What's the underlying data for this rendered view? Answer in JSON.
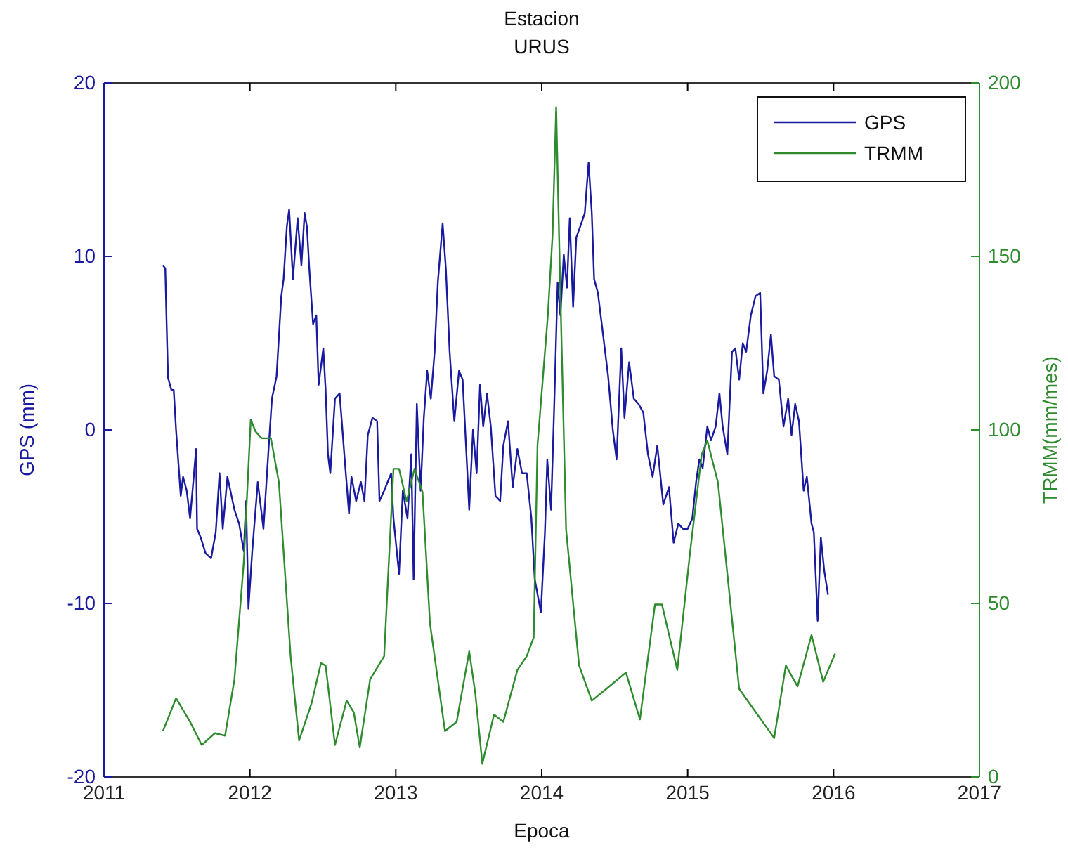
{
  "chart_data": {
    "type": "line",
    "title": "Estacion",
    "subtitle": "URUS",
    "xlabel": "Epoca",
    "ylabel": "GPS (mm)",
    "y2label": "TRMM(mm/mes)",
    "xlim": [
      2011,
      2017
    ],
    "xticks": [
      2011,
      2012,
      2013,
      2014,
      2015,
      2016,
      2017
    ],
    "ylim": [
      -20,
      20
    ],
    "yticks": [
      -20,
      -10,
      0,
      10,
      20
    ],
    "y2lim": [
      0,
      200
    ],
    "y2ticks": [
      0,
      50,
      100,
      150,
      200
    ],
    "grid": false,
    "legend": "top right",
    "line_style": "solid",
    "marker": "none",
    "series": [
      {
        "name": "GPS",
        "color": "#1a1aa0",
        "x": [
          2011.404,
          2011.42,
          2011.429,
          2011.439,
          2011.462,
          2011.478,
          2011.494,
          2011.526,
          2011.542,
          2011.567,
          2011.59,
          2011.612,
          2011.631,
          2011.638,
          2011.663,
          2011.696,
          2011.734,
          2011.766,
          2011.792,
          2011.814,
          2011.846,
          2011.894,
          2011.926,
          2011.958,
          2011.974,
          2011.99,
          2012.016,
          2012.054,
          2012.093,
          2012.128,
          2012.151,
          2012.183,
          2012.215,
          2012.231,
          2012.253,
          2012.269,
          2012.295,
          2012.327,
          2012.353,
          2012.375,
          2012.391,
          2012.407,
          2012.433,
          2012.455,
          2012.471,
          2012.503,
          2012.519,
          2012.535,
          2012.551,
          2012.583,
          2012.615,
          2012.647,
          2012.679,
          2012.696,
          2012.728,
          2012.76,
          2012.785,
          2012.808,
          2012.84,
          2012.872,
          2012.888,
          2012.92,
          2012.968,
          2012.984,
          2013.022,
          2013.048,
          2013.08,
          2013.106,
          2013.122,
          2013.144,
          2013.17,
          2013.192,
          2013.215,
          2013.24,
          2013.266,
          2013.288,
          2013.321,
          2013.343,
          2013.369,
          2013.401,
          2013.433,
          2013.458,
          2013.481,
          2013.503,
          2013.529,
          2013.554,
          2013.577,
          2013.599,
          2013.625,
          2013.651,
          2013.683,
          2013.715,
          2013.737,
          2013.769,
          2013.801,
          2013.833,
          2013.865,
          2013.897,
          2013.929,
          2013.952,
          2013.994,
          2014.022,
          2014.038,
          2014.064,
          2014.087,
          2014.109,
          2014.128,
          2014.151,
          2014.173,
          2014.192,
          2014.215,
          2014.237,
          2014.263,
          2014.295,
          2014.321,
          2014.343,
          2014.359,
          2014.385,
          2014.423,
          2014.455,
          2014.487,
          2014.513,
          2014.545,
          2014.567,
          2014.599,
          2014.631,
          2014.663,
          2014.696,
          2014.728,
          2014.76,
          2014.792,
          2014.833,
          2014.872,
          2014.904,
          2014.936,
          2014.968,
          2015.0,
          2015.032,
          2015.058,
          2015.08,
          2015.103,
          2015.135,
          2015.16,
          2015.192,
          2015.218,
          2015.24,
          2015.272,
          2015.304,
          2015.327,
          2015.353,
          2015.378,
          2015.401,
          2015.433,
          2015.465,
          2015.497,
          2015.519,
          2015.545,
          2015.571,
          2015.593,
          2015.625,
          2015.657,
          2015.689,
          2015.712,
          2015.737,
          2015.763,
          2015.795,
          2015.817,
          2015.849,
          2015.865,
          2015.891,
          2015.913,
          2015.936,
          2015.962
        ],
        "values": [
          9.5,
          9.3,
          6.2,
          3.0,
          2.3,
          2.3,
          0,
          -3.8,
          -2.7,
          -3.5,
          -5.1,
          -3.0,
          -1.1,
          -5.7,
          -6.2,
          -7.1,
          -7.4,
          -5.9,
          -2.5,
          -5.7,
          -2.7,
          -4.6,
          -5.4,
          -7.0,
          -4.1,
          -10.3,
          -7.0,
          -3.0,
          -5.7,
          -1.1,
          1.8,
          3.1,
          7.7,
          8.7,
          11.7,
          12.7,
          8.7,
          12.2,
          9.5,
          12.5,
          11.7,
          9.3,
          6.1,
          6.6,
          2.6,
          4.7,
          2.3,
          -1.4,
          -2.5,
          1.8,
          2.1,
          -1.4,
          -4.8,
          -2.7,
          -4.1,
          -3.0,
          -4.1,
          -0.3,
          0.7,
          0.5,
          -4.1,
          -3.5,
          -2.5,
          -5.1,
          -8.3,
          -3.5,
          -5.1,
          -1.4,
          -8.6,
          1.5,
          -3.5,
          0.7,
          3.4,
          1.8,
          4.5,
          8.5,
          11.9,
          9.3,
          4.5,
          0.5,
          3.4,
          2.9,
          -0.9,
          -4.6,
          0,
          -2.5,
          2.6,
          0.2,
          2.1,
          0.2,
          -3.8,
          -4.1,
          -0.9,
          0.5,
          -3.3,
          -1.1,
          -2.5,
          -2.5,
          -5.1,
          -8.6,
          -10.5,
          -5.9,
          -1.7,
          -4.6,
          1.8,
          8.5,
          6.6,
          10.1,
          8.2,
          12.2,
          7.1,
          11.1,
          11.7,
          12.5,
          15.4,
          12.5,
          8.7,
          7.9,
          5.3,
          3.1,
          0,
          -1.7,
          4.7,
          0.7,
          3.9,
          1.8,
          1.5,
          1.0,
          -1.4,
          -2.7,
          -0.9,
          -4.3,
          -3.3,
          -6.5,
          -5.4,
          -5.7,
          -5.7,
          -5.1,
          -3.0,
          -1.7,
          -2.2,
          0.2,
          -0.6,
          0.2,
          2.1,
          0.2,
          -1.4,
          4.5,
          4.7,
          2.9,
          5.0,
          4.5,
          6.6,
          7.7,
          7.9,
          2.1,
          3.4,
          5.5,
          3.1,
          2.9,
          0.2,
          1.8,
          -0.3,
          1.5,
          0.5,
          -3.5,
          -2.7,
          -5.4,
          -5.9,
          -11.0,
          -6.2,
          -8.1,
          -9.5
        ]
      },
      {
        "name": "TRMM",
        "color": "#2e8b2e",
        "axis": "y2",
        "x": [
          2011.404,
          2011.494,
          2011.59,
          2011.67,
          2011.76,
          2011.83,
          2011.894,
          2011.958,
          2012.006,
          2012.038,
          2012.08,
          2012.144,
          2012.199,
          2012.279,
          2012.337,
          2012.423,
          2012.487,
          2012.519,
          2012.583,
          2012.663,
          2012.712,
          2012.753,
          2012.824,
          2012.881,
          2012.92,
          2012.984,
          2013.022,
          2013.074,
          2013.128,
          2013.183,
          2013.234,
          2013.337,
          2013.417,
          2013.503,
          2013.545,
          2013.593,
          2013.673,
          2013.737,
          2013.833,
          2013.897,
          2013.945,
          2013.971,
          2014.042,
          2014.074,
          2014.099,
          2014.128,
          2014.167,
          2014.256,
          2014.343,
          2014.423,
          2014.577,
          2014.673,
          2014.776,
          2014.824,
          2014.929,
          2015.016,
          2015.096,
          2015.135,
          2015.208,
          2015.353,
          2015.593,
          2015.673,
          2015.753,
          2015.849,
          2015.929,
          2016.01
        ],
        "values": [
          13.2,
          22.7,
          15.9,
          9.2,
          12.6,
          11.9,
          28.1,
          61.8,
          103,
          99.6,
          97.6,
          97.6,
          84.8,
          34.8,
          10.5,
          21.3,
          32.8,
          32.1,
          9.2,
          22,
          18.6,
          8.5,
          28.1,
          32.1,
          34.8,
          88.8,
          88.8,
          79.4,
          88.8,
          82.1,
          44.3,
          13.2,
          15.9,
          36.2,
          24,
          3.8,
          18,
          15.9,
          30.8,
          34.8,
          40.2,
          95.6,
          133,
          156,
          193,
          139,
          71.3,
          32.1,
          22,
          24.7,
          30.1,
          16.6,
          49.7,
          49.7,
          30.8,
          64.5,
          92.9,
          96.9,
          84.8,
          25.4,
          11.2,
          32.1,
          26.1,
          40.9,
          27.4,
          35.5
        ]
      }
    ]
  }
}
